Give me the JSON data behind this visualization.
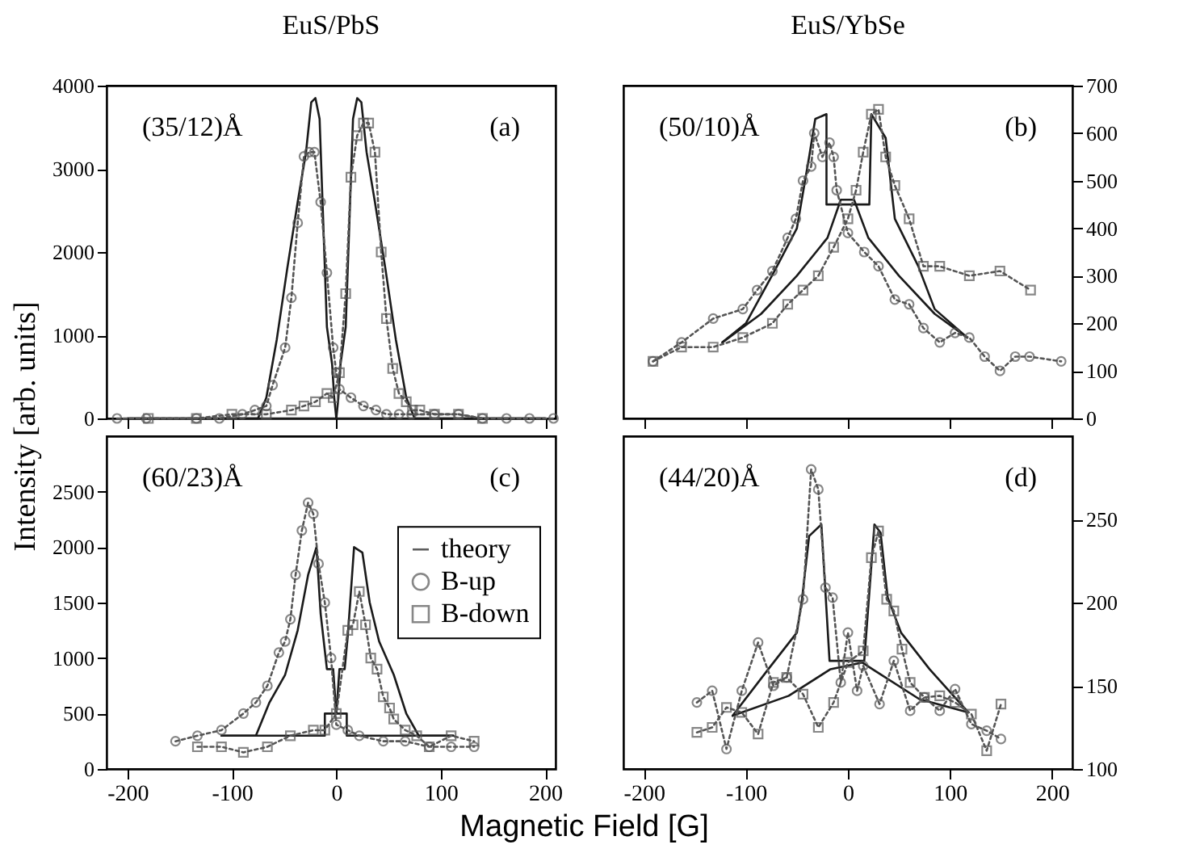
{
  "chart_data": [
    {
      "type": "line",
      "title": "EuS/PbS",
      "ylabel": "Intensity [arb. units]",
      "annotations": [
        "(35/12)Å",
        "(a)"
      ],
      "xlim": [
        -220,
        210
      ],
      "xticks": [
        -200,
        -100,
        0,
        100,
        200
      ],
      "ylim": [
        0,
        4000
      ],
      "yticks": [
        0,
        1000,
        2000,
        3000,
        4000
      ],
      "tick_labels": "y",
      "series": [
        {
          "type": "line",
          "color": "#1a1a1a",
          "marker": "none",
          "line_style": "solid",
          "x": [
            -200,
            -75,
            -67,
            -57,
            -47,
            -37,
            -29,
            -24,
            -20,
            -16,
            -9,
            -4,
            -2,
            0,
            200
          ],
          "values": [
            0,
            0,
            250,
            950,
            1800,
            2600,
            3200,
            3800,
            3850,
            3600,
            1100,
            650,
            250,
            0,
            0
          ]
        },
        {
          "type": "line",
          "color": "#1a1a1a",
          "marker": "none",
          "line_style": "solid",
          "x": [
            -200,
            0,
            2,
            4,
            9,
            16,
            20,
            24,
            29,
            37,
            47,
            57,
            67,
            75,
            200
          ],
          "values": [
            0,
            0,
            250,
            650,
            1100,
            3600,
            3850,
            3800,
            3200,
            2600,
            1800,
            950,
            250,
            0,
            0
          ]
        },
        {
          "type": "line",
          "color": "#555555",
          "marker": "circle",
          "line_style": "dotted",
          "x": [
            -210,
            -182,
            -134,
            -112,
            -90,
            -78,
            -67,
            -61,
            -49,
            -43,
            -37,
            -31,
            -26,
            -21,
            -15,
            -9,
            -3,
            0,
            3,
            14,
            26,
            38,
            48,
            60,
            72,
            94,
            117,
            140,
            163,
            185,
            208
          ],
          "values": [
            0,
            0,
            0,
            0,
            50,
            100,
            150,
            400,
            850,
            1450,
            2350,
            3150,
            3200,
            3200,
            2600,
            1750,
            850,
            550,
            350,
            250,
            150,
            100,
            50,
            50,
            50,
            50,
            50,
            0,
            0,
            0,
            0
          ]
        },
        {
          "type": "line",
          "color": "#555555",
          "marker": "square",
          "line_style": "dotted",
          "x": [
            -180,
            -134,
            -100,
            -67,
            -43,
            -31,
            -20,
            -9,
            -3,
            3,
            9,
            14,
            20,
            26,
            31,
            37,
            43,
            48,
            54,
            60,
            67,
            73,
            80,
            94,
            117,
            140
          ],
          "values": [
            0,
            0,
            50,
            50,
            100,
            150,
            200,
            300,
            250,
            550,
            1500,
            2900,
            3400,
            3550,
            3550,
            3200,
            2000,
            1200,
            600,
            300,
            200,
            100,
            100,
            50,
            50,
            0
          ]
        }
      ]
    },
    {
      "type": "line",
      "title": "EuS/YbSe",
      "annotations": [
        "(50/10)Å",
        "(b)"
      ],
      "xlim": [
        -220,
        220
      ],
      "xticks": [
        -200,
        -100,
        0,
        100,
        200
      ],
      "y2lim": [
        0,
        700
      ],
      "y2ticks": [
        0,
        100,
        200,
        300,
        400,
        500,
        600,
        700
      ],
      "tick_labels": "y",
      "series": [
        {
          "type": "line",
          "axis": "y2",
          "color": "#1a1a1a",
          "marker": "none",
          "line_style": "solid",
          "x": [
            -123,
            -100,
            -72,
            -50,
            -38,
            -32,
            -21,
            -21,
            21,
            23,
            37,
            46,
            69,
            85,
            117
          ],
          "values": [
            160,
            200,
            310,
            400,
            550,
            630,
            640,
            450,
            450,
            640,
            590,
            420,
            320,
            230,
            170
          ]
        },
        {
          "type": "line",
          "axis": "y2",
          "color": "#1a1a1a",
          "marker": "none",
          "line_style": "solid",
          "x": [
            -123,
            -85,
            -50,
            -20,
            -7,
            6,
            20,
            50,
            85,
            117
          ],
          "values": [
            160,
            220,
            300,
            380,
            460,
            460,
            380,
            300,
            220,
            170
          ]
        },
        {
          "type": "line",
          "axis": "y2",
          "color": "#555555",
          "marker": "circle",
          "line_style": "dotted",
          "x": [
            -191,
            -163,
            -132,
            -103,
            -89,
            -74,
            -59,
            -51,
            -44,
            -36,
            -33,
            -25,
            -18,
            -14,
            -11,
            0,
            16,
            30,
            46,
            60,
            74,
            90,
            105,
            119,
            134,
            149,
            164,
            178,
            209
          ],
          "values": [
            120,
            160,
            210,
            230,
            270,
            310,
            380,
            420,
            500,
            530,
            600,
            550,
            580,
            550,
            480,
            390,
            350,
            320,
            250,
            240,
            190,
            160,
            180,
            170,
            130,
            100,
            130,
            130,
            120
          ]
        },
        {
          "type": "line",
          "axis": "y2",
          "color": "#555555",
          "marker": "square",
          "line_style": "dotted",
          "x": [
            -191,
            -163,
            -132,
            -103,
            -74,
            -59,
            -44,
            -29,
            -14,
            0,
            8,
            15,
            23,
            30,
            37,
            46,
            60,
            74,
            90,
            119,
            149,
            179
          ],
          "values": [
            120,
            150,
            150,
            170,
            200,
            240,
            270,
            300,
            360,
            420,
            480,
            560,
            640,
            650,
            550,
            490,
            420,
            320,
            320,
            300,
            310,
            270
          ]
        }
      ]
    },
    {
      "type": "line",
      "xlabel": "Magnetic Field [G]",
      "annotations": [
        "(60/23)Å",
        "(c)"
      ],
      "legend": "right",
      "xlim": [
        -220,
        210
      ],
      "xticks": [
        -200,
        -100,
        0,
        100,
        200
      ],
      "ylim": [
        0,
        3000
      ],
      "yticks": [
        0,
        500,
        1000,
        1500,
        2000,
        2500
      ],
      "series": [
        {
          "type": "line",
          "name": "theory",
          "color": "#1a1a1a",
          "marker": "none",
          "line_style": "solid",
          "x": [
            -110,
            -77,
            -64,
            -49,
            -37,
            -27,
            -19,
            -15,
            -9,
            -3,
            0,
            10,
            10,
            112
          ],
          "values": [
            300,
            300,
            600,
            850,
            1250,
            1750,
            2000,
            1400,
            900,
            900,
            500,
            500,
            300,
            300
          ]
        },
        {
          "type": "line",
          "color": "#1a1a1a",
          "marker": "none",
          "line_style": "solid",
          "x": [
            -110,
            -11,
            -11,
            0,
            3,
            8,
            11,
            17,
            25,
            32,
            41,
            55,
            67,
            79,
            112
          ],
          "values": [
            300,
            300,
            500,
            500,
            900,
            900,
            1200,
            2000,
            1950,
            1500,
            1150,
            850,
            500,
            300,
            300
          ]
        },
        {
          "type": "line",
          "name": "B-up",
          "color": "#555555",
          "marker": "circle",
          "line_style": "dotted",
          "x": [
            -154,
            -133,
            -110,
            -89,
            -77,
            -66,
            -55,
            -49,
            -44,
            -39,
            -33,
            -27,
            -22,
            -17,
            -11,
            -5,
            0,
            11,
            22,
            45,
            66,
            89,
            110,
            132
          ],
          "values": [
            250,
            300,
            350,
            500,
            600,
            750,
            1050,
            1150,
            1350,
            1750,
            2150,
            2400,
            2300,
            1850,
            1500,
            1000,
            400,
            350,
            300,
            250,
            250,
            200,
            200,
            200
          ]
        },
        {
          "type": "line",
          "name": "B-down",
          "color": "#555555",
          "marker": "square",
          "line_style": "dotted",
          "x": [
            -133,
            -110,
            -89,
            -66,
            -44,
            -22,
            -11,
            0,
            11,
            16,
            22,
            28,
            33,
            39,
            45,
            51,
            55,
            66,
            77,
            89,
            110,
            132
          ],
          "values": [
            200,
            200,
            150,
            200,
            300,
            350,
            350,
            500,
            1250,
            1300,
            1600,
            1300,
            1000,
            900,
            650,
            550,
            450,
            350,
            300,
            200,
            300,
            250
          ]
        }
      ]
    },
    {
      "type": "line",
      "annotations": [
        "(44/20)Å",
        "(d)"
      ],
      "xlim": [
        -220,
        220
      ],
      "xticks": [
        -200,
        -100,
        0,
        100,
        200
      ],
      "y2lim": [
        100,
        300
      ],
      "y2ticks": [
        100,
        150,
        200,
        250
      ],
      "series": [
        {
          "type": "line",
          "axis": "y2",
          "color": "#1a1a1a",
          "marker": "none",
          "line_style": "solid",
          "x": [
            -113,
            -78,
            -50,
            -45,
            -38,
            -26,
            -18,
            16,
            26,
            32,
            39,
            52,
            80,
            118
          ],
          "values": [
            132,
            160,
            182,
            202,
            240,
            247,
            165,
            165,
            247,
            242,
            203,
            182,
            160,
            134
          ]
        },
        {
          "type": "line",
          "axis": "y2",
          "color": "#1a1a1a",
          "marker": "none",
          "line_style": "solid",
          "x": [
            -113,
            -58,
            -17,
            14,
            24,
            70,
            118
          ],
          "values": [
            132,
            144,
            160,
            164,
            160,
            142,
            134
          ]
        },
        {
          "type": "line",
          "axis": "y2",
          "color": "#555555",
          "marker": "circle",
          "line_style": "dotted",
          "x": [
            -148,
            -133,
            -119,
            -104,
            -88,
            -73,
            -60,
            -44,
            -36,
            -29,
            -22,
            -15,
            -7,
            0,
            9,
            15,
            31,
            45,
            61,
            75,
            90,
            105,
            121,
            136,
            150
          ],
          "values": [
            140,
            147,
            112,
            147,
            176,
            150,
            155,
            202,
            280,
            268,
            209,
            203,
            152,
            182,
            147,
            162,
            139,
            165,
            135,
            143,
            135,
            148,
            127,
            123,
            118
          ]
        },
        {
          "type": "line",
          "axis": "y2",
          "color": "#555555",
          "marker": "square",
          "line_style": "dotted",
          "x": [
            -148,
            -133,
            -119,
            -104,
            -88,
            -73,
            -60,
            -44,
            -29,
            -14,
            0,
            15,
            23,
            30,
            38,
            45,
            53,
            61,
            75,
            90,
            105,
            121,
            136,
            150
          ],
          "values": [
            122,
            125,
            137,
            134,
            121,
            152,
            155,
            145,
            125,
            140,
            164,
            171,
            227,
            243,
            202,
            195,
            172,
            152,
            143,
            144,
            140,
            133,
            111,
            139
          ]
        }
      ]
    }
  ]
}
